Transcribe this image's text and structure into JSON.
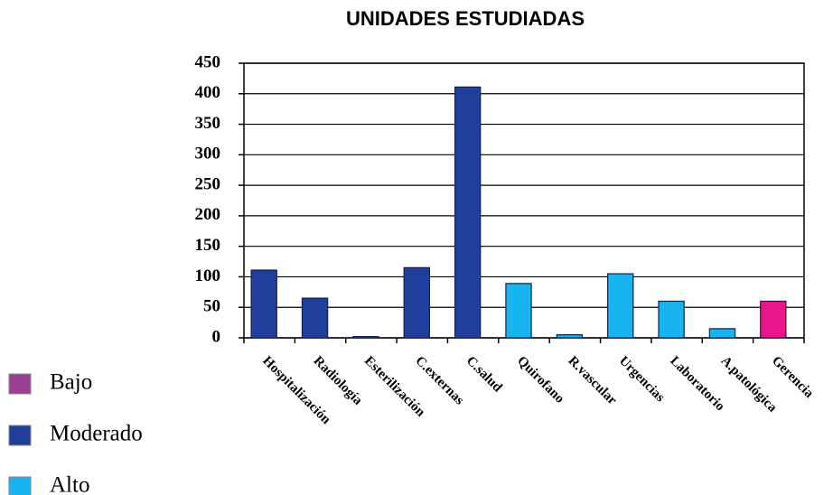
{
  "chart_data": {
    "type": "bar",
    "title": "UNIDADES ESTUDIADAS",
    "categories": [
      "Hospitalización",
      "Radiología",
      "Esterilización",
      "C.externas",
      "C.salud",
      "Quirofano",
      "R.vascular",
      "Urgencias",
      "Laboratorio",
      "A.patológica",
      "Gerencia"
    ],
    "series": [
      {
        "name": "Bajo",
        "color": "#e8168a",
        "legend_color": "#9a3f92",
        "values": [
          null,
          null,
          null,
          null,
          null,
          null,
          null,
          null,
          null,
          null,
          60
        ]
      },
      {
        "name": "Moderado",
        "color": "#1f3f9a",
        "legend_color": "#1f3f9a",
        "values": [
          111,
          65,
          2,
          115,
          411,
          null,
          null,
          null,
          null,
          null,
          null
        ]
      },
      {
        "name": "Alto",
        "color": "#17b4ef",
        "legend_color": "#17b4ef",
        "values": [
          null,
          null,
          null,
          null,
          null,
          89,
          5,
          105,
          60,
          15,
          null
        ]
      }
    ],
    "ylim": [
      0,
      450
    ],
    "yticks": [
      0,
      50,
      100,
      150,
      200,
      250,
      300,
      350,
      400,
      450
    ],
    "grid": true,
    "legend": "left"
  }
}
